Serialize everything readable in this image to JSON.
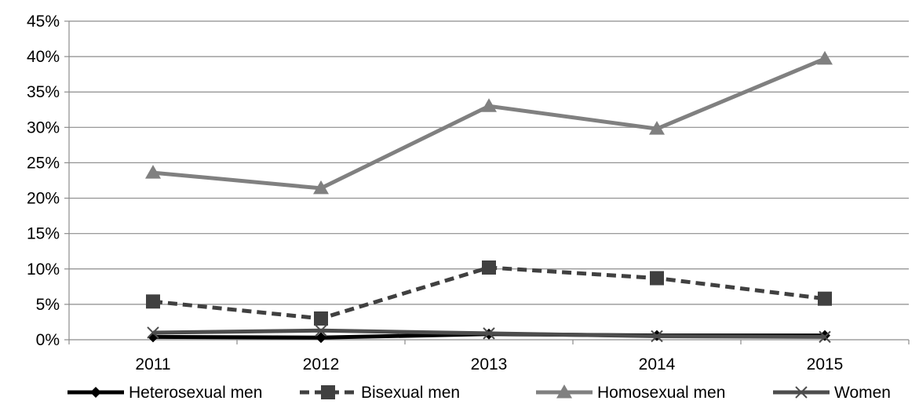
{
  "chart_data": {
    "type": "line",
    "title": "",
    "xlabel": "",
    "ylabel": "",
    "categories": [
      "2011",
      "2012",
      "2013",
      "2014",
      "2015"
    ],
    "ylim": [
      0,
      0.45
    ],
    "y_ticks": [
      "0%",
      "5%",
      "10%",
      "15%",
      "20%",
      "25%",
      "30%",
      "35%",
      "40%",
      "45%"
    ],
    "grid": true,
    "legend_position": "bottom",
    "series": [
      {
        "name": "Heterosexual men",
        "values": [
          0.004,
          0.003,
          0.008,
          0.006,
          0.006
        ],
        "color": "#000000",
        "marker": "diamond",
        "dash": "solid"
      },
      {
        "name": "Bisexual men",
        "values": [
          0.054,
          0.03,
          0.102,
          0.087,
          0.058
        ],
        "color": "#404040",
        "marker": "square",
        "dash": "dashed"
      },
      {
        "name": "Homosexual men",
        "values": [
          0.236,
          0.214,
          0.33,
          0.298,
          0.397
        ],
        "color": "#808080",
        "marker": "triangle",
        "dash": "solid"
      },
      {
        "name": "Women",
        "values": [
          0.01,
          0.013,
          0.009,
          0.005,
          0.004
        ],
        "color": "#4d4d4d",
        "marker": "x",
        "dash": "solid"
      }
    ]
  }
}
